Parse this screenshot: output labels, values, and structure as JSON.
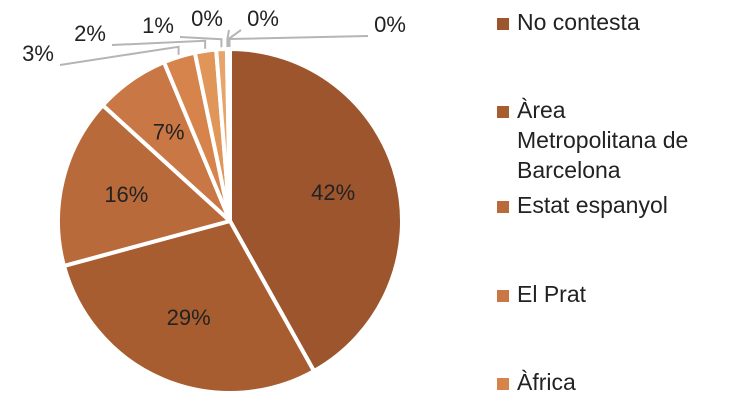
{
  "chart_data": {
    "type": "pie",
    "title": "",
    "legend_position": "right",
    "categories": [
      "No contesta",
      "Àrea Metropolitana de Barcelona",
      "Estat espanyol",
      "El Prat",
      "Àfrica",
      "",
      "",
      "",
      "",
      ""
    ],
    "legend_lines": [
      [
        "No contesta"
      ],
      [
        "Àrea",
        "Metropolitana de",
        "Barcelona"
      ],
      [
        "Estat espanyol"
      ],
      [
        "El Prat"
      ],
      [
        "Àfrica"
      ]
    ],
    "values": [
      42,
      29,
      16,
      7,
      3,
      2,
      1,
      0,
      0,
      0
    ],
    "value_labels": [
      "42%",
      "29%",
      "16%",
      "7%",
      "3%",
      "2%",
      "1%",
      "0%",
      "0%",
      "0%"
    ],
    "colors": [
      "#9C552D",
      "#A85D31",
      "#B96A3A",
      "#C97744",
      "#D6844C",
      "#E09559",
      "#E8A56B",
      "#EEB07B",
      "#F2BF8E",
      "#F5CBA2"
    ]
  }
}
